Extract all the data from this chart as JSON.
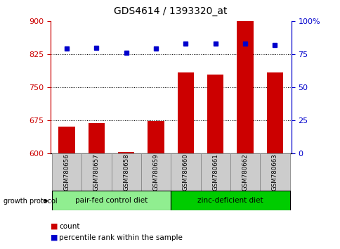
{
  "title": "GDS4614 / 1393320_at",
  "samples": [
    "GSM780656",
    "GSM780657",
    "GSM780658",
    "GSM780659",
    "GSM780660",
    "GSM780661",
    "GSM780662",
    "GSM780663"
  ],
  "counts": [
    660,
    668,
    603,
    673,
    783,
    778,
    900,
    783
  ],
  "percentile_ranks": [
    79,
    80,
    76,
    79,
    83,
    83,
    83,
    82
  ],
  "ylim_left": [
    600,
    900
  ],
  "ylim_right": [
    0,
    100
  ],
  "yticks_left": [
    600,
    675,
    750,
    825,
    900
  ],
  "yticks_right": [
    0,
    25,
    50,
    75,
    100
  ],
  "ytick_labels_right": [
    "0",
    "25",
    "50",
    "75",
    "100%"
  ],
  "hlines": [
    675,
    750,
    825
  ],
  "bar_color": "#cc0000",
  "dot_color": "#0000cc",
  "bar_bottom": 600,
  "groups": [
    {
      "label": "pair-fed control diet",
      "indices": [
        0,
        1,
        2,
        3
      ],
      "color": "#90ee90"
    },
    {
      "label": "zinc-deficient diet",
      "indices": [
        4,
        5,
        6,
        7
      ],
      "color": "#00cc00"
    }
  ],
  "group_protocol_label": "growth protocol",
  "legend_bar_label": "count",
  "legend_dot_label": "percentile rank within the sample",
  "title_fontsize": 10,
  "tick_fontsize": 8,
  "left_tick_color": "#cc0000",
  "right_tick_color": "#0000cc",
  "sample_box_color": "#cccccc",
  "figure_bg": "#ffffff"
}
